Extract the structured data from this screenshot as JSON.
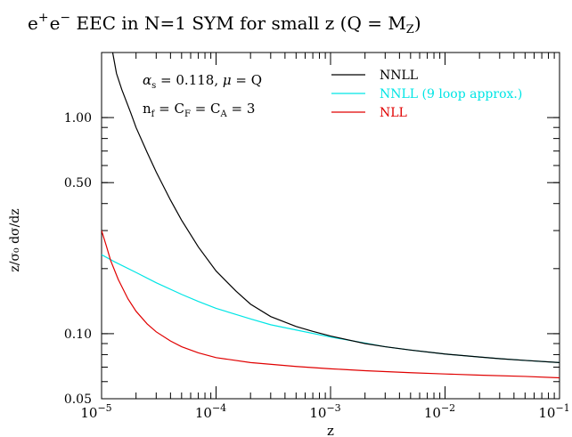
{
  "chart_data": {
    "type": "line",
    "title": "e⁺e⁻ EEC in N=1 SYM for small z (Q = M_Z)",
    "title_parts": {
      "prefix": "e",
      "sup1": "+",
      "mid": "e",
      "sup2": "−",
      "main": " EEC in N=1 SYM for small z (Q = M",
      "sub": "Z",
      "end": ")"
    },
    "xlabel": "z",
    "ylabel": "z/σ₀ dσ/dz",
    "x_scale": "log",
    "y_scale": "log",
    "xlim": [
      1e-05,
      0.1
    ],
    "ylim": [
      0.05,
      2.0
    ],
    "x_ticks": [
      {
        "value": 1e-05,
        "base": "10",
        "exp": "−5"
      },
      {
        "value": 0.0001,
        "base": "10",
        "exp": "−4"
      },
      {
        "value": 0.001,
        "base": "10",
        "exp": "−3"
      },
      {
        "value": 0.01,
        "base": "10",
        "exp": "−2"
      },
      {
        "value": 0.1,
        "base": "10",
        "exp": "−1"
      }
    ],
    "y_ticks": [
      {
        "value": 0.05,
        "label": "0.05"
      },
      {
        "value": 0.1,
        "label": "0.10"
      },
      {
        "value": 0.5,
        "label": "0.50"
      },
      {
        "value": 1.0,
        "label": "1.00"
      }
    ],
    "annotations": {
      "line1": {
        "alpha": "α",
        "alpha_sub": "s",
        "rest": " = 0.118,  ",
        "mu": "μ",
        "mu_rest": " = Q"
      },
      "line2": {
        "n": "n",
        "n_sub": "f",
        "eq1": " = C",
        "cf_sub": "F",
        "eq2": " = C",
        "ca_sub": "A",
        "rest": " = 3"
      }
    },
    "legend_position": "top-right",
    "series": [
      {
        "name": "NNLL",
        "color": "#000000",
        "x": [
          1.25e-05,
          1.35e-05,
          1.5e-05,
          1.8e-05,
          2e-05,
          2.5e-05,
          3e-05,
          4e-05,
          5e-05,
          7e-05,
          0.0001,
          0.00015,
          0.0002,
          0.0003,
          0.0005,
          0.0007,
          0.001,
          0.002,
          0.003,
          0.005,
          0.01,
          0.02,
          0.03,
          0.05,
          0.1
        ],
        "y": [
          2.0,
          1.6,
          1.35,
          1.05,
          0.9,
          0.69,
          0.56,
          0.415,
          0.335,
          0.252,
          0.195,
          0.157,
          0.137,
          0.12,
          0.108,
          0.1025,
          0.0975,
          0.09,
          0.087,
          0.084,
          0.0805,
          0.078,
          0.0766,
          0.0752,
          0.0735
        ]
      },
      {
        "name": "NNLL (9 loop approx.)",
        "color": "#00e5e5",
        "x": [
          1e-05,
          1.3e-05,
          2e-05,
          3e-05,
          5e-05,
          7e-05,
          0.0001,
          0.0002,
          0.0003,
          0.0005,
          0.001,
          0.002,
          0.003,
          0.005,
          0.01,
          0.02,
          0.03,
          0.05,
          0.1
        ],
        "y": [
          0.232,
          0.215,
          0.192,
          0.172,
          0.152,
          0.141,
          0.131,
          0.117,
          0.11,
          0.104,
          0.0965,
          0.0905,
          0.087,
          0.084,
          0.0805,
          0.078,
          0.0766,
          0.0752,
          0.0735
        ]
      },
      {
        "name": "NLL",
        "color": "#e00000",
        "x": [
          1e-05,
          1.1e-05,
          1.2e-05,
          1.4e-05,
          1.7e-05,
          2e-05,
          2.5e-05,
          3e-05,
          4e-05,
          5e-05,
          7e-05,
          0.0001,
          0.0002,
          0.0005,
          0.001,
          0.002,
          0.005,
          0.01,
          0.02,
          0.05,
          0.1
        ],
        "y": [
          0.3,
          0.255,
          0.218,
          0.178,
          0.145,
          0.127,
          0.111,
          0.102,
          0.0925,
          0.087,
          0.0815,
          0.0775,
          0.0735,
          0.0705,
          0.0688,
          0.0674,
          0.066,
          0.0651,
          0.0643,
          0.0634,
          0.0625
        ]
      }
    ]
  }
}
